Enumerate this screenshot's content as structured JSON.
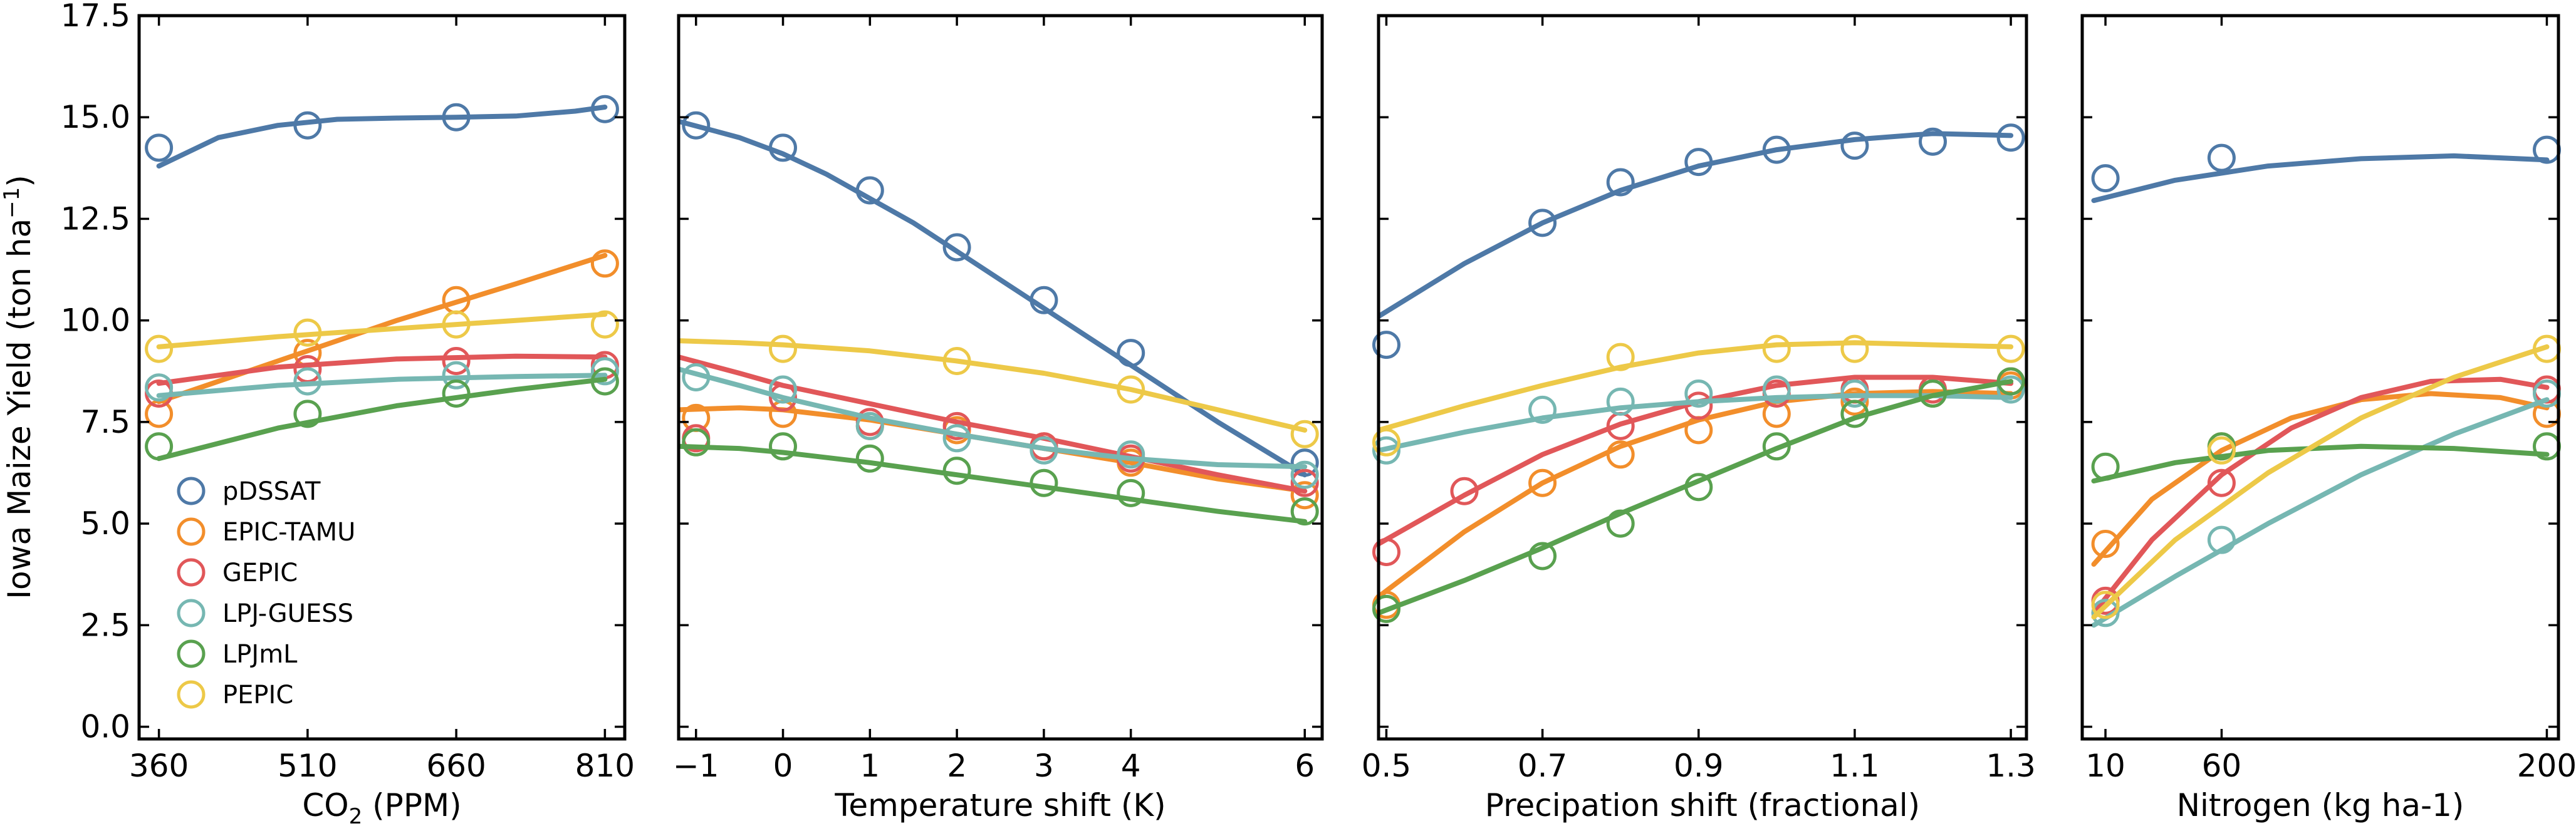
{
  "colors": {
    "pDSSAT": "#4e79a7",
    "EPIC-TAMU": "#f28e2b",
    "GEPIC": "#e15759",
    "LPJ-GUESS": "#76b7b2",
    "LPJmL": "#59a14f",
    "PEPIC": "#edc948"
  },
  "legend": {
    "placement": "lower-left",
    "entries": [
      "pDSSAT",
      "EPIC-TAMU",
      "GEPIC",
      "LPJ-GUESS",
      "LPJmL",
      "PEPIC"
    ]
  },
  "chart_data": [
    {
      "type": "scatter",
      "panel": "co2",
      "xlabel": "CO",
      "xlabel_sub": "2",
      "xlabel_tail": " (PPM)",
      "ylabel": "Iowa Maize Yield (ton ha",
      "ylabel_sup": "−1",
      "ylabel_tail": ")",
      "xlim": [
        340,
        830
      ],
      "ylim": [
        -0.3,
        17.5
      ],
      "xticks": [
        360,
        510,
        660,
        810
      ],
      "xtick_labels": [
        "360",
        "510",
        "660",
        "810"
      ],
      "yticks": [
        0,
        2.5,
        5,
        7.5,
        10,
        12.5,
        15,
        17.5
      ],
      "ytick_labels": [
        "0.0",
        "2.5",
        "5.0",
        "7.5",
        "10.0",
        "12.5",
        "15.0",
        "17.5"
      ],
      "series": [
        {
          "name": "pDSSAT",
          "x": [
            360,
            510,
            660,
            810
          ],
          "y": [
            14.25,
            14.8,
            15.0,
            15.2
          ],
          "fit_x": [
            360,
            420,
            480,
            540,
            600,
            660,
            720,
            780,
            810
          ],
          "fit_y": [
            13.8,
            14.5,
            14.8,
            14.95,
            14.98,
            15.0,
            15.03,
            15.15,
            15.25
          ]
        },
        {
          "name": "EPIC-TAMU",
          "x": [
            360,
            510,
            660,
            810
          ],
          "y": [
            7.7,
            9.2,
            10.5,
            11.4
          ],
          "fit_x": [
            360,
            480,
            600,
            720,
            810
          ],
          "fit_y": [
            8.0,
            9.0,
            10.0,
            10.9,
            11.6
          ]
        },
        {
          "name": "GEPIC",
          "x": [
            360,
            510,
            660,
            810
          ],
          "y": [
            8.2,
            8.8,
            9.0,
            8.9
          ],
          "fit_x": [
            360,
            480,
            600,
            720,
            810
          ],
          "fit_y": [
            8.45,
            8.85,
            9.05,
            9.12,
            9.1
          ]
        },
        {
          "name": "LPJ-GUESS",
          "x": [
            360,
            510,
            660,
            810
          ],
          "y": [
            8.35,
            8.5,
            8.65,
            8.75
          ],
          "fit_x": [
            360,
            480,
            600,
            720,
            810
          ],
          "fit_y": [
            8.15,
            8.4,
            8.55,
            8.62,
            8.65
          ]
        },
        {
          "name": "LPJmL",
          "x": [
            360,
            510,
            660,
            810
          ],
          "y": [
            6.9,
            7.7,
            8.2,
            8.5
          ],
          "fit_x": [
            360,
            480,
            600,
            720,
            810
          ],
          "fit_y": [
            6.6,
            7.35,
            7.9,
            8.3,
            8.55
          ]
        },
        {
          "name": "PEPIC",
          "x": [
            360,
            510,
            660,
            810
          ],
          "y": [
            9.3,
            9.7,
            9.9,
            9.9
          ],
          "fit_x": [
            360,
            480,
            600,
            720,
            810
          ],
          "fit_y": [
            9.35,
            9.6,
            9.8,
            10.0,
            10.15
          ]
        }
      ]
    },
    {
      "type": "scatter",
      "panel": "temperature",
      "xlabel": "Temperature shift (K)",
      "xlim": [
        -1.2,
        6.2
      ],
      "ylim": [
        -0.3,
        17.5
      ],
      "xticks": [
        -1,
        0,
        1,
        2,
        3,
        4,
        6
      ],
      "xtick_labels": [
        "−1",
        "0",
        "1",
        "2",
        "3",
        "4",
        "6"
      ],
      "yticks": [
        0,
        2.5,
        5,
        7.5,
        10,
        12.5,
        15,
        17.5
      ],
      "series": [
        {
          "name": "pDSSAT",
          "x": [
            -1,
            0,
            1,
            2,
            3,
            4,
            6
          ],
          "y": [
            14.8,
            14.25,
            13.2,
            11.8,
            10.5,
            9.2,
            6.5
          ],
          "fit_x": [
            -1.2,
            -0.5,
            0,
            0.5,
            1,
            1.5,
            2,
            2.5,
            3,
            3.5,
            4,
            4.5,
            5,
            5.5,
            6
          ],
          "fit_y": [
            14.9,
            14.5,
            14.1,
            13.6,
            13.0,
            12.4,
            11.7,
            11.0,
            10.3,
            9.6,
            8.9,
            8.2,
            7.5,
            6.85,
            6.2
          ]
        },
        {
          "name": "EPIC-TAMU",
          "x": [
            -1,
            0,
            1,
            2,
            3,
            4,
            6
          ],
          "y": [
            7.6,
            7.7,
            7.4,
            7.3,
            6.9,
            6.5,
            5.7
          ],
          "fit_x": [
            -1.2,
            -0.5,
            0,
            1,
            2,
            3,
            4,
            5,
            6
          ],
          "fit_y": [
            7.8,
            7.85,
            7.8,
            7.55,
            7.2,
            6.85,
            6.5,
            6.1,
            5.8
          ]
        },
        {
          "name": "GEPIC",
          "x": [
            -1,
            0,
            1,
            2,
            3,
            4,
            6
          ],
          "y": [
            7.1,
            8.1,
            7.5,
            7.4,
            6.9,
            6.6,
            6.0
          ],
          "fit_x": [
            -1.2,
            -0.5,
            0,
            1,
            2,
            3,
            4,
            5,
            6
          ],
          "fit_y": [
            9.1,
            8.7,
            8.4,
            7.95,
            7.5,
            7.1,
            6.65,
            6.2,
            5.8
          ]
        },
        {
          "name": "LPJ-GUESS",
          "x": [
            -1,
            0,
            1,
            2,
            3,
            4,
            6
          ],
          "y": [
            8.6,
            8.3,
            7.4,
            7.1,
            6.8,
            6.7,
            6.2
          ],
          "fit_x": [
            -1.2,
            -0.5,
            0,
            1,
            2,
            3,
            4,
            5,
            6
          ],
          "fit_y": [
            8.8,
            8.4,
            8.1,
            7.6,
            7.2,
            6.85,
            6.6,
            6.45,
            6.4
          ]
        },
        {
          "name": "LPJmL",
          "x": [
            -1,
            0,
            1,
            2,
            3,
            4,
            6
          ],
          "y": [
            7.0,
            6.9,
            6.6,
            6.3,
            6.0,
            5.75,
            5.3
          ],
          "fit_x": [
            -1.2,
            -0.5,
            0,
            1,
            2,
            3,
            4,
            5,
            6
          ],
          "fit_y": [
            6.9,
            6.85,
            6.75,
            6.5,
            6.2,
            5.9,
            5.6,
            5.3,
            5.05
          ]
        },
        {
          "name": "PEPIC",
          "x": [
            0,
            2,
            4,
            6
          ],
          "y": [
            9.3,
            9.0,
            8.3,
            7.2
          ],
          "fit_x": [
            -1.2,
            -0.5,
            0,
            1,
            2,
            3,
            4,
            5,
            6
          ],
          "fit_y": [
            9.5,
            9.45,
            9.4,
            9.25,
            9.0,
            8.7,
            8.3,
            7.8,
            7.3
          ]
        }
      ]
    },
    {
      "type": "scatter",
      "panel": "precipitation",
      "xlabel": "Precipation shift (fractional)",
      "xlim": [
        0.49,
        1.32
      ],
      "ylim": [
        -0.3,
        17.5
      ],
      "xticks": [
        0.5,
        0.7,
        0.9,
        1.1,
        1.3
      ],
      "xtick_labels": [
        "0.5",
        "0.7",
        "0.9",
        "1.1",
        "1.3"
      ],
      "yticks": [
        0,
        2.5,
        5,
        7.5,
        10,
        12.5,
        15,
        17.5
      ],
      "series": [
        {
          "name": "pDSSAT",
          "x": [
            0.5,
            0.7,
            0.8,
            0.9,
            1.0,
            1.1,
            1.2,
            1.3
          ],
          "y": [
            9.4,
            12.4,
            13.4,
            13.9,
            14.2,
            14.3,
            14.4,
            14.5
          ],
          "fit_x": [
            0.49,
            0.6,
            0.7,
            0.8,
            0.9,
            1.0,
            1.1,
            1.2,
            1.3
          ],
          "fit_y": [
            10.1,
            11.4,
            12.4,
            13.2,
            13.8,
            14.2,
            14.45,
            14.6,
            14.55
          ]
        },
        {
          "name": "EPIC-TAMU",
          "x": [
            0.5,
            0.7,
            0.8,
            0.9,
            1.0,
            1.1,
            1.2,
            1.3
          ],
          "y": [
            3.0,
            6.0,
            6.7,
            7.3,
            7.7,
            8.0,
            8.2,
            8.4
          ],
          "fit_x": [
            0.49,
            0.6,
            0.7,
            0.8,
            0.9,
            1.0,
            1.1,
            1.2,
            1.3
          ],
          "fit_y": [
            3.2,
            4.8,
            6.0,
            6.9,
            7.55,
            8.0,
            8.2,
            8.25,
            8.2
          ]
        },
        {
          "name": "GEPIC",
          "x": [
            0.5,
            0.6,
            0.8,
            0.9,
            1.0,
            1.1,
            1.2,
            1.3
          ],
          "y": [
            4.3,
            5.8,
            7.4,
            7.9,
            8.2,
            8.3,
            8.3,
            8.5
          ],
          "fit_x": [
            0.49,
            0.6,
            0.7,
            0.8,
            0.9,
            1.0,
            1.1,
            1.2,
            1.3
          ],
          "fit_y": [
            4.5,
            5.7,
            6.7,
            7.45,
            8.0,
            8.4,
            8.6,
            8.6,
            8.45
          ]
        },
        {
          "name": "LPJ-GUESS",
          "x": [
            0.5,
            0.7,
            0.8,
            0.9,
            1.0,
            1.1,
            1.2,
            1.3
          ],
          "y": [
            6.8,
            7.8,
            8.0,
            8.2,
            8.3,
            8.2,
            8.2,
            8.3
          ],
          "fit_x": [
            0.49,
            0.6,
            0.7,
            0.8,
            0.9,
            1.0,
            1.1,
            1.2,
            1.3
          ],
          "fit_y": [
            6.8,
            7.25,
            7.6,
            7.85,
            8.0,
            8.1,
            8.15,
            8.15,
            8.1
          ]
        },
        {
          "name": "LPJmL",
          "x": [
            0.5,
            0.7,
            0.8,
            0.9,
            1.0,
            1.1,
            1.2,
            1.3
          ],
          "y": [
            2.9,
            4.2,
            5.0,
            5.9,
            6.9,
            7.7,
            8.2,
            8.5
          ],
          "fit_x": [
            0.49,
            0.6,
            0.7,
            0.8,
            0.9,
            1.0,
            1.1,
            1.2,
            1.3
          ],
          "fit_y": [
            2.8,
            3.6,
            4.4,
            5.25,
            6.05,
            6.85,
            7.6,
            8.15,
            8.5
          ]
        },
        {
          "name": "PEPIC",
          "x": [
            0.5,
            0.8,
            1.0,
            1.1,
            1.3
          ],
          "y": [
            7.0,
            9.1,
            9.3,
            9.3,
            9.3
          ],
          "fit_x": [
            0.49,
            0.6,
            0.7,
            0.8,
            0.9,
            1.0,
            1.1,
            1.2,
            1.3
          ],
          "fit_y": [
            7.3,
            7.9,
            8.4,
            8.85,
            9.2,
            9.4,
            9.45,
            9.4,
            9.35
          ]
        }
      ]
    },
    {
      "type": "scatter",
      "panel": "nitrogen",
      "xlabel": "Nitrogen (kg ha-1)",
      "xlim": [
        0,
        205
      ],
      "ylim": [
        -0.3,
        17.5
      ],
      "xticks": [
        10,
        60,
        200
      ],
      "xtick_labels": [
        "10",
        "60",
        "200"
      ],
      "yticks": [
        0,
        2.5,
        5,
        7.5,
        10,
        12.5,
        15,
        17.5
      ],
      "series": [
        {
          "name": "pDSSAT",
          "x": [
            10,
            60,
            200
          ],
          "y": [
            13.5,
            14.0,
            14.2
          ],
          "fit_x": [
            5,
            40,
            80,
            120,
            160,
            200
          ],
          "fit_y": [
            12.95,
            13.45,
            13.8,
            13.98,
            14.05,
            13.95
          ]
        },
        {
          "name": "EPIC-TAMU",
          "x": [
            10,
            60,
            200
          ],
          "y": [
            4.5,
            6.9,
            7.7
          ],
          "fit_x": [
            5,
            30,
            60,
            90,
            120,
            150,
            180,
            200
          ],
          "fit_y": [
            4.0,
            5.6,
            6.8,
            7.6,
            8.05,
            8.2,
            8.1,
            7.85
          ]
        },
        {
          "name": "GEPIC",
          "x": [
            10,
            60,
            200
          ],
          "y": [
            3.1,
            6.0,
            8.3
          ],
          "fit_x": [
            5,
            30,
            60,
            90,
            120,
            150,
            180,
            200
          ],
          "fit_y": [
            2.8,
            4.6,
            6.2,
            7.35,
            8.1,
            8.5,
            8.55,
            8.35
          ]
        },
        {
          "name": "LPJ-GUESS",
          "x": [
            10,
            60,
            200
          ],
          "y": [
            2.8,
            4.6,
            8.2
          ],
          "fit_x": [
            5,
            40,
            80,
            120,
            160,
            200
          ],
          "fit_y": [
            2.5,
            3.7,
            5.0,
            6.2,
            7.2,
            8.05
          ]
        },
        {
          "name": "LPJmL",
          "x": [
            10,
            60,
            200
          ],
          "y": [
            6.4,
            6.9,
            6.9
          ],
          "fit_x": [
            5,
            40,
            80,
            120,
            160,
            200
          ],
          "fit_y": [
            6.05,
            6.5,
            6.8,
            6.9,
            6.85,
            6.7
          ]
        },
        {
          "name": "PEPIC",
          "x": [
            10,
            60,
            200
          ],
          "y": [
            3.0,
            6.8,
            9.3
          ],
          "fit_x": [
            5,
            40,
            80,
            120,
            160,
            200
          ],
          "fit_y": [
            2.7,
            4.6,
            6.25,
            7.6,
            8.6,
            9.35
          ]
        }
      ]
    }
  ]
}
